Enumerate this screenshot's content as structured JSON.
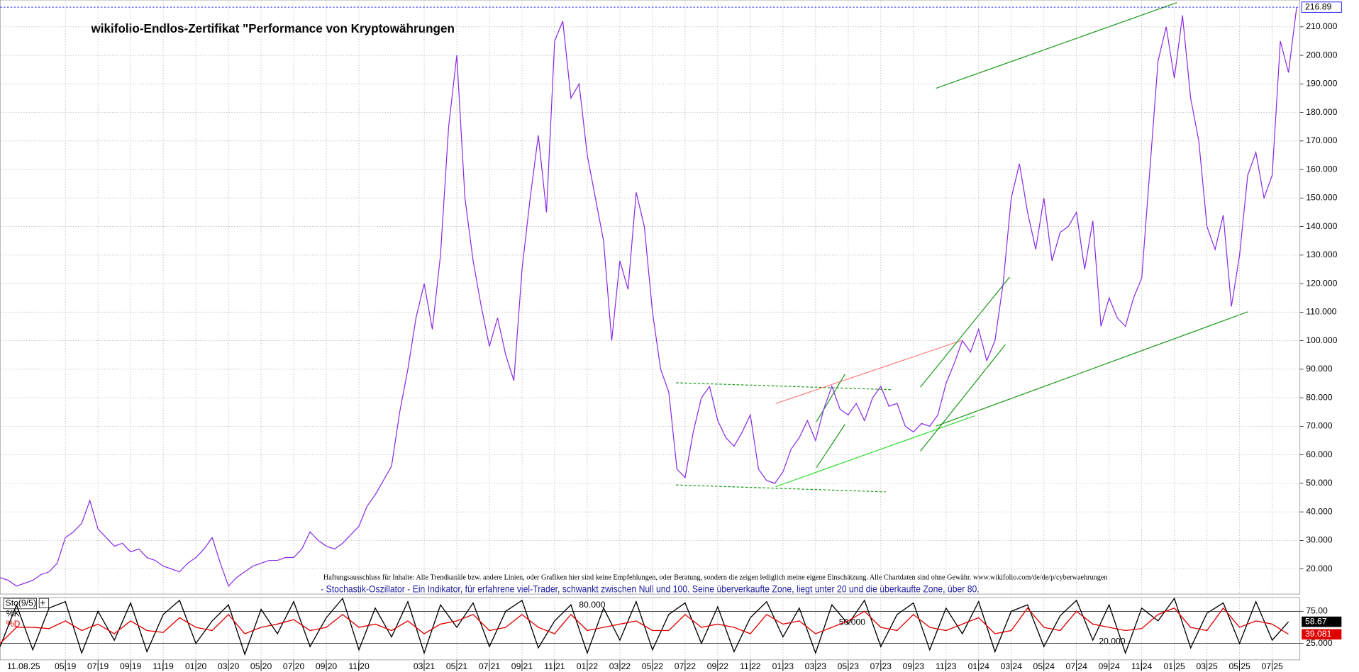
{
  "chart_data": [
    {
      "type": "line",
      "title": "wikifolio-Endlos-Zertifikat \"Performance von Kryptowährungen",
      "disclaimer": "Haftungsausschluss für Inhalte: Alle Trendkanäle bzw. andere Linien, oder Grafiken hier sind keine Empfehlungen, oder Beratung, sondern die zeigen lediglich meine eigene Einschätzung. Alle Chartdaten sind ohne Gewähr. www.wikifolio.com/de/de/p/cyberwaehrungen",
      "indicator_note": "- Stochastik-Oszillator - Ein Indikator, für erfahrene viel-Trader, schwankt zwischen Null und 100. Seine überverkaufte Zone, liegt unter 20 und die überkaufte Zone, über 80.",
      "date_label": "11.08.25",
      "x": [
        0,
        0.5,
        1,
        1.5,
        2,
        2.5,
        3,
        3.5,
        4,
        4.5,
        5,
        5.5,
        6,
        6.5,
        7,
        7.5,
        8,
        8.5,
        9,
        9.5,
        10,
        10.5,
        11,
        11.5,
        12,
        12.5,
        13,
        13.5,
        14,
        14.5,
        15,
        15.5,
        16,
        16.5,
        17,
        17.5,
        18,
        18.5,
        19,
        19.5,
        20,
        20.5,
        21,
        21.5,
        22,
        22.5,
        23,
        23.5,
        24,
        24.5,
        25,
        25.5,
        26,
        26.5,
        27,
        27.5,
        28,
        28.5,
        29,
        29.5,
        30,
        30.5,
        31,
        31.5,
        32,
        32.5,
        33,
        33.5,
        34,
        34.5,
        35,
        35.5,
        36,
        36.5,
        37,
        37.5,
        38,
        38.5,
        39,
        39.5,
        40,
        40.5,
        41,
        41.5,
        42,
        42.5,
        43,
        43.5,
        44,
        44.5,
        45,
        45.5,
        46,
        46.5,
        47,
        47.5,
        48,
        48.5,
        49,
        49.5,
        50,
        50.5,
        51,
        51.5,
        52,
        52.5,
        53,
        53.5,
        54,
        54.5,
        55,
        55.5,
        56,
        56.5,
        57,
        57.5,
        58,
        58.5,
        59,
        59.5,
        60,
        60.5,
        61,
        61.5,
        62,
        62.5,
        63,
        63.5,
        64,
        64.5,
        65,
        65.5,
        66,
        66.5,
        67,
        67.5,
        68,
        68.5,
        69,
        69.5,
        70,
        70.5,
        71,
        71.5,
        72,
        72.5,
        73,
        73.5,
        74,
        74.5,
        75,
        75.5,
        76,
        76.5,
        77,
        77.5,
        78,
        78.5,
        79,
        79.5
      ],
      "series": [
        {
          "color": "#8a2be2",
          "values": [
            17,
            16,
            14,
            15,
            16,
            18,
            19,
            22,
            31,
            33,
            36,
            44,
            34,
            31,
            28,
            29,
            26,
            27,
            24,
            23,
            21,
            20,
            19,
            22,
            24,
            27,
            31,
            22,
            14,
            17,
            19,
            21,
            22,
            23,
            23,
            24,
            24,
            27,
            33,
            30,
            28,
            27,
            29,
            32,
            35,
            42,
            46,
            51,
            56,
            75,
            90,
            108,
            120,
            104,
            130,
            175,
            200,
            150,
            128,
            112,
            98,
            108,
            95,
            86,
            125,
            150,
            172,
            145,
            205,
            212,
            185,
            190,
            165,
            150,
            135,
            100,
            128,
            118,
            152,
            140,
            110,
            90,
            82,
            55,
            52,
            68,
            80,
            84,
            72,
            66,
            63,
            68,
            74,
            55,
            51,
            50,
            54,
            62,
            66,
            72,
            65,
            76,
            84,
            76,
            74,
            78,
            72,
            80,
            84,
            77,
            78,
            70,
            68,
            71,
            70,
            74,
            85,
            92,
            100,
            96,
            104,
            93,
            100,
            120,
            150,
            162,
            145,
            132,
            150,
            128,
            138,
            140,
            145,
            125,
            142,
            105,
            115,
            108,
            105,
            115,
            122,
            160,
            198,
            210,
            192,
            214,
            185,
            170,
            140,
            132,
            144,
            112,
            130,
            158,
            166,
            150,
            158,
            205,
            194,
            216.89
          ]
        }
      ],
      "xlim": [
        0,
        79.7
      ],
      "xticks": [
        {
          "value": 4,
          "label": "05|19"
        },
        {
          "value": 6,
          "label": "07|19"
        },
        {
          "value": 8,
          "label": "09|19"
        },
        {
          "value": 10,
          "label": "11|19"
        },
        {
          "value": 12,
          "label": "01|20"
        },
        {
          "value": 14,
          "label": "03|20"
        },
        {
          "value": 16,
          "label": "05|20"
        },
        {
          "value": 18,
          "label": "07|20"
        },
        {
          "value": 20,
          "label": "09|20"
        },
        {
          "value": 22,
          "label": "11|20"
        },
        {
          "value": 26,
          "label": "03|21"
        },
        {
          "value": 28,
          "label": "05|21"
        },
        {
          "value": 30,
          "label": "07|21"
        },
        {
          "value": 32,
          "label": "09|21"
        },
        {
          "value": 34,
          "label": "11|21"
        },
        {
          "value": 36,
          "label": "01|22"
        },
        {
          "value": 38,
          "label": "03|22"
        },
        {
          "value": 40,
          "label": "05|22"
        },
        {
          "value": 42,
          "label": "07|22"
        },
        {
          "value": 44,
          "label": "09|22"
        },
        {
          "value": 46,
          "label": "11|22"
        },
        {
          "value": 48,
          "label": "01|23"
        },
        {
          "value": 50,
          "label": "03|23"
        },
        {
          "value": 52,
          "label": "05|23"
        },
        {
          "value": 54,
          "label": "07|23"
        },
        {
          "value": 56,
          "label": "09|23"
        },
        {
          "value": 58,
          "label": "11|23"
        },
        {
          "value": 60,
          "label": "01|24"
        },
        {
          "value": 62,
          "label": "03|24"
        },
        {
          "value": 64,
          "label": "05|24"
        },
        {
          "value": 66,
          "label": "07|24"
        },
        {
          "value": 68,
          "label": "09|24"
        },
        {
          "value": 70,
          "label": "11|24"
        },
        {
          "value": 72,
          "label": "01|25"
        },
        {
          "value": 74,
          "label": "03|25"
        },
        {
          "value": 76,
          "label": "05|25"
        },
        {
          "value": 78,
          "label": "07|25"
        }
      ],
      "ylim": [
        11.2,
        219.4
      ],
      "yticks": [
        {
          "value": 20,
          "label": "20.000"
        },
        {
          "value": 30,
          "label": "30.000"
        },
        {
          "value": 40,
          "label": "40.000"
        },
        {
          "value": 50,
          "label": "50.000"
        },
        {
          "value": 60,
          "label": "60.000"
        },
        {
          "value": 70,
          "label": "70.000"
        },
        {
          "value": 80,
          "label": "80.000"
        },
        {
          "value": 90,
          "label": "90.000"
        },
        {
          "value": 100,
          "label": "100.000"
        },
        {
          "value": 110,
          "label": "110.000"
        },
        {
          "value": 120,
          "label": "120.000"
        },
        {
          "value": 130,
          "label": "130.000"
        },
        {
          "value": 140,
          "label": "140.000"
        },
        {
          "value": 150,
          "label": "150.000"
        },
        {
          "value": 160,
          "label": "160.000"
        },
        {
          "value": 170,
          "label": "170.000"
        },
        {
          "value": 180,
          "label": "180.000"
        },
        {
          "value": 190,
          "label": "190.000"
        },
        {
          "value": 200,
          "label": "200.000"
        },
        {
          "value": 210,
          "label": "210.000"
        }
      ],
      "grid": true
    },
    {
      "type": "line",
      "title": "Sto(9/5)",
      "level_labels": [
        "80.000",
        "50.000",
        "20.000"
      ],
      "x": [
        0,
        1,
        2,
        3,
        4,
        5,
        6,
        7,
        8,
        9,
        10,
        11,
        12,
        13,
        14,
        15,
        16,
        17,
        18,
        19,
        20,
        21,
        22,
        23,
        24,
        25,
        26,
        27,
        28,
        29,
        30,
        31,
        32,
        33,
        34,
        35,
        36,
        37,
        38,
        39,
        40,
        41,
        42,
        43,
        44,
        45,
        46,
        47,
        48,
        49,
        50,
        51,
        52,
        53,
        54,
        55,
        56,
        57,
        58,
        59,
        60,
        61,
        62,
        63,
        64,
        65,
        66,
        67,
        68,
        69,
        70,
        71,
        72,
        73,
        74,
        75,
        76,
        77,
        78,
        79
      ],
      "series": [
        {
          "name": "%K",
          "color": "#000000",
          "values": [
            20,
            85,
            15,
            80,
            90,
            10,
            75,
            30,
            88,
            12,
            70,
            92,
            25,
            60,
            85,
            8,
            78,
            40,
            90,
            20,
            65,
            95,
            15,
            80,
            35,
            90,
            10,
            85,
            50,
            88,
            20,
            75,
            92,
            18,
            60,
            85,
            10,
            80,
            30,
            90,
            15,
            70,
            88,
            25,
            82,
            12,
            65,
            90,
            35,
            80,
            10,
            85,
            55,
            92,
            20,
            70,
            88,
            15,
            80,
            40,
            90,
            12,
            75,
            85,
            20,
            68,
            92,
            30,
            85,
            10,
            80,
            60,
            95,
            18,
            72,
            88,
            25,
            90,
            30,
            58.67
          ]
        },
        {
          "name": "%D",
          "color": "#e00000",
          "values": [
            25,
            50,
            50,
            48,
            60,
            45,
            55,
            40,
            60,
            45,
            42,
            65,
            50,
            45,
            70,
            40,
            50,
            55,
            62,
            45,
            50,
            70,
            50,
            55,
            45,
            60,
            40,
            55,
            60,
            70,
            45,
            50,
            70,
            50,
            40,
            70,
            45,
            50,
            55,
            60,
            45,
            45,
            70,
            50,
            55,
            50,
            40,
            70,
            55,
            60,
            40,
            50,
            60,
            75,
            50,
            45,
            70,
            50,
            45,
            55,
            65,
            40,
            45,
            80,
            50,
            45,
            75,
            55,
            50,
            45,
            48,
            70,
            80,
            50,
            45,
            80,
            50,
            60,
            55,
            39.081
          ]
        }
      ],
      "xlim": [
        0,
        79.7
      ],
      "ylim": [
        -0.7,
        96.4
      ],
      "yticks": [
        {
          "value": 25,
          "label": "25.000"
        },
        {
          "value": 75,
          "label": "75.00"
        }
      ]
    }
  ]
}
